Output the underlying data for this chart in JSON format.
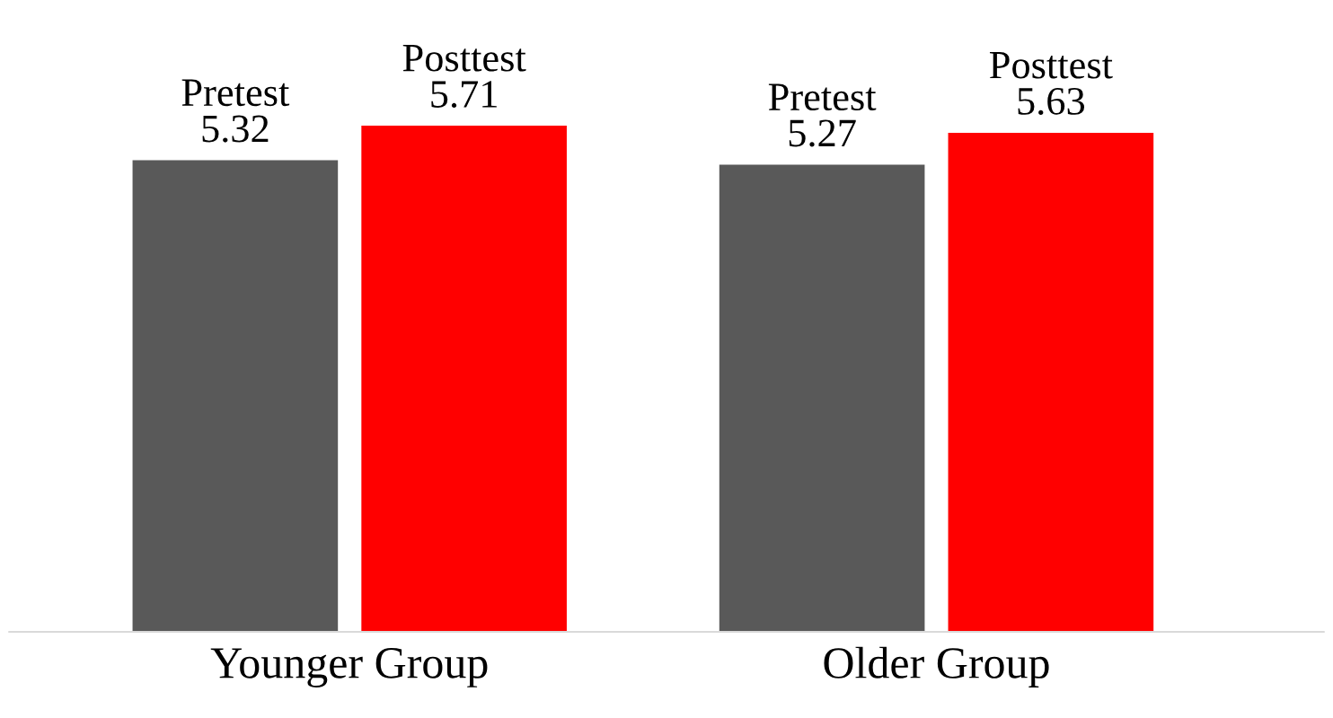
{
  "chart_data": {
    "type": "bar",
    "categories": [
      "Younger Group",
      "Older Group"
    ],
    "series": [
      {
        "name": "Pretest",
        "color": "#595959",
        "values": [
          5.32,
          5.27
        ]
      },
      {
        "name": "Posttest",
        "color": "#ff0000",
        "values": [
          5.71,
          5.63
        ]
      }
    ],
    "data_labels": true,
    "grid": false,
    "legend": false,
    "tick_labels": "x"
  }
}
